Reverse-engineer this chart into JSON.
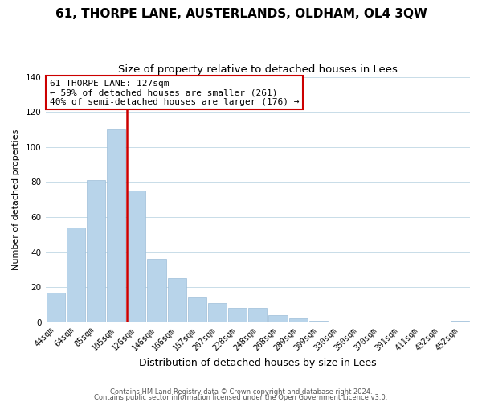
{
  "title": "61, THORPE LANE, AUSTERLANDS, OLDHAM, OL4 3QW",
  "subtitle": "Size of property relative to detached houses in Lees",
  "xlabel": "Distribution of detached houses by size in Lees",
  "ylabel": "Number of detached properties",
  "categories": [
    "44sqm",
    "64sqm",
    "85sqm",
    "105sqm",
    "126sqm",
    "146sqm",
    "166sqm",
    "187sqm",
    "207sqm",
    "228sqm",
    "248sqm",
    "268sqm",
    "289sqm",
    "309sqm",
    "330sqm",
    "350sqm",
    "370sqm",
    "391sqm",
    "411sqm",
    "432sqm",
    "452sqm"
  ],
  "values": [
    17,
    54,
    81,
    110,
    75,
    36,
    25,
    14,
    11,
    8,
    8,
    4,
    2,
    1,
    0,
    0,
    0,
    0,
    0,
    0,
    1
  ],
  "bar_color": "#b8d4ea",
  "bar_edge_color": "#9dbdd8",
  "redline_index": 4,
  "redline_color": "#cc0000",
  "annotation_text": "61 THORPE LANE: 127sqm\n← 59% of detached houses are smaller (261)\n40% of semi-detached houses are larger (176) →",
  "annotation_box_color": "#ffffff",
  "annotation_box_edge": "#cc0000",
  "ylim": [
    0,
    140
  ],
  "yticks": [
    0,
    20,
    40,
    60,
    80,
    100,
    120,
    140
  ],
  "footer1": "Contains HM Land Registry data © Crown copyright and database right 2024.",
  "footer2": "Contains public sector information licensed under the Open Government Licence v3.0.",
  "bg_color": "#ffffff",
  "grid_color": "#c8dce8",
  "title_fontsize": 11,
  "subtitle_fontsize": 9.5,
  "tick_fontsize": 7,
  "ylabel_fontsize": 8,
  "xlabel_fontsize": 9,
  "ann_fontsize": 8,
  "footer_fontsize": 6
}
